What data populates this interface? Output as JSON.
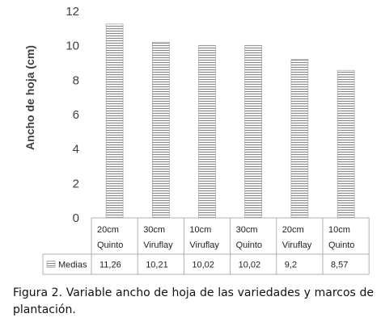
{
  "chart_data": {
    "type": "bar",
    "categories": [
      [
        "20cm",
        "Quinto"
      ],
      [
        "30cm",
        "Viruflay"
      ],
      [
        "10cm",
        "Viruflay"
      ],
      [
        "30cm",
        "Quinto"
      ],
      [
        "20cm",
        "Viruflay"
      ],
      [
        "10cm",
        "Quinto"
      ]
    ],
    "series": [
      {
        "name": "Medias",
        "values": [
          11.26,
          10.21,
          10.02,
          10.02,
          9.2,
          8.57
        ],
        "value_labels": [
          "11,26",
          "10,21",
          "10,02",
          "10,02",
          "9,2",
          "8,57"
        ]
      }
    ],
    "ylabel": "Ancho de hoja (cm)",
    "xlabel": "",
    "ylim": [
      0,
      12
    ],
    "yticks": [
      0,
      2,
      4,
      6,
      8,
      10,
      12
    ],
    "grid": false,
    "data_table": true,
    "bar_fill": "horizontal-stripes",
    "colors": {
      "bar_light": "#f4f4f4",
      "bar_dark": "#8a8a8a",
      "table_border": "#b0b0b0",
      "axis_text": "#404040"
    }
  },
  "caption": {
    "text": "Figura 2. Variable ancho de hoja de las variedades y marcos de plantación."
  }
}
